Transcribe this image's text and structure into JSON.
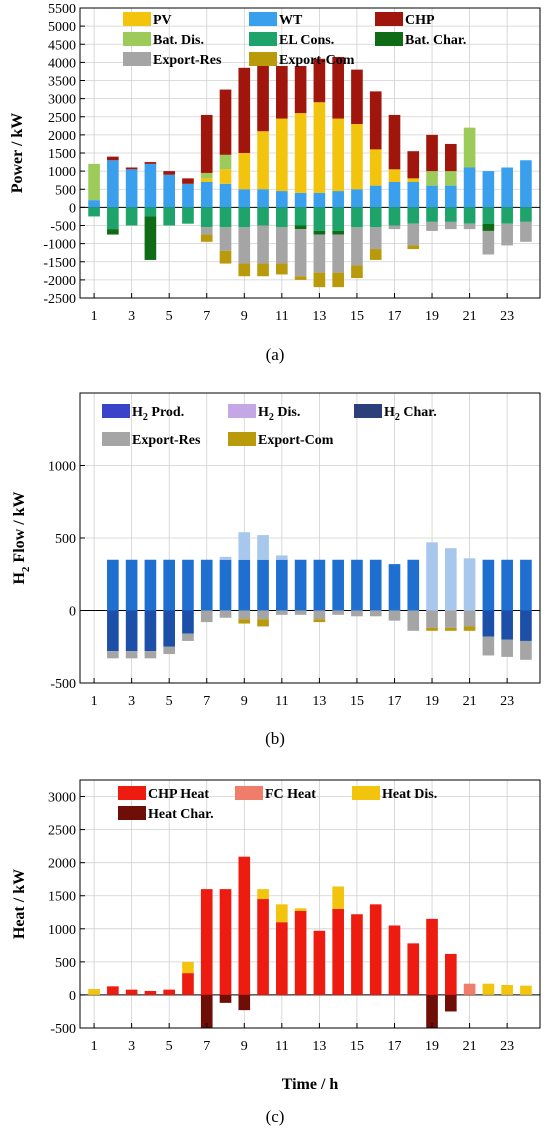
{
  "chart_data": [
    {
      "type": "bar",
      "stacked": true,
      "caption": "(a)",
      "ylabel": "Power / kW",
      "xlabel": "",
      "x": [
        1,
        2,
        3,
        4,
        5,
        6,
        7,
        8,
        9,
        10,
        11,
        12,
        13,
        14,
        15,
        16,
        17,
        18,
        19,
        20,
        21,
        22,
        23,
        24
      ],
      "xticks": [
        1,
        3,
        5,
        7,
        9,
        11,
        13,
        15,
        17,
        19,
        21,
        23
      ],
      "ylim": [
        -2500,
        5500
      ],
      "yticks": [
        -2500,
        -2000,
        -1500,
        -1000,
        -500,
        0,
        500,
        1000,
        1500,
        2000,
        2500,
        3000,
        3500,
        4000,
        4500,
        5000,
        5500
      ],
      "legend": [
        {
          "name": "PV",
          "color": "#f2c40d"
        },
        {
          "name": "WT",
          "color": "#3aa0ee"
        },
        {
          "name": "CHP",
          "color": "#a0160d"
        },
        {
          "name": "Bat. Dis.",
          "color": "#9ccb5a"
        },
        {
          "name": "EL Cons.",
          "color": "#1ea36a"
        },
        {
          "name": "Bat. Char.",
          "color": "#0f6b16"
        },
        {
          "name": "Export-Res",
          "color": "#a5a5a5"
        },
        {
          "name": "Export-Com",
          "color": "#b89a0a"
        }
      ],
      "positive_series": [
        {
          "name": "WT",
          "color": "#3aa0ee",
          "values": [
            200,
            1300,
            1050,
            1200,
            900,
            650,
            700,
            650,
            500,
            500,
            450,
            400,
            400,
            450,
            500,
            600,
            700,
            700,
            600,
            600,
            1100,
            1000,
            1100,
            1300
          ]
        },
        {
          "name": "PV",
          "color": "#f2c40d",
          "values": [
            0,
            0,
            0,
            0,
            0,
            0,
            100,
            400,
            1000,
            1600,
            2000,
            2200,
            2500,
            2000,
            1800,
            1000,
            350,
            100,
            0,
            0,
            0,
            0,
            0,
            0
          ]
        },
        {
          "name": "Bat. Dis.",
          "color": "#9ccb5a",
          "values": [
            1000,
            0,
            0,
            0,
            0,
            0,
            150,
            400,
            0,
            0,
            0,
            0,
            0,
            0,
            0,
            0,
            0,
            0,
            400,
            400,
            1100,
            0,
            0,
            0
          ]
        },
        {
          "name": "CHP",
          "color": "#a0160d",
          "values": [
            0,
            100,
            50,
            50,
            100,
            150,
            1600,
            1800,
            2350,
            1800,
            1450,
            1300,
            1200,
            1700,
            1500,
            1600,
            1500,
            750,
            1000,
            750,
            0,
            0,
            0,
            0
          ]
        }
      ],
      "negative_series": [
        {
          "name": "EL Cons.",
          "color": "#1ea36a",
          "values": [
            -250,
            -600,
            -500,
            -250,
            -500,
            -450,
            -550,
            -550,
            -550,
            -500,
            -550,
            -500,
            -650,
            -650,
            -550,
            -550,
            -500,
            -450,
            -400,
            -400,
            -450,
            -450,
            -450,
            -400
          ]
        },
        {
          "name": "Bat. Char.",
          "color": "#0f6b16",
          "values": [
            0,
            -150,
            0,
            -1200,
            0,
            0,
            0,
            0,
            0,
            0,
            0,
            -100,
            -100,
            -100,
            0,
            0,
            0,
            0,
            0,
            0,
            0,
            -200,
            0,
            0
          ]
        },
        {
          "name": "Export-Res",
          "color": "#a5a5a5",
          "values": [
            0,
            0,
            0,
            0,
            0,
            0,
            -200,
            -650,
            -1000,
            -1050,
            -1000,
            -1300,
            -1050,
            -1050,
            -1050,
            -600,
            -100,
            -600,
            -250,
            -200,
            -150,
            -650,
            -600,
            -550
          ]
        },
        {
          "name": "Export-Com",
          "color": "#b89a0a",
          "values": [
            0,
            0,
            0,
            0,
            0,
            0,
            -200,
            -350,
            -350,
            -350,
            -300,
            -100,
            -400,
            -400,
            -350,
            -300,
            0,
            -100,
            0,
            0,
            0,
            0,
            0,
            0
          ]
        }
      ]
    },
    {
      "type": "bar",
      "stacked": true,
      "caption": "(b)",
      "ylabel": "H2 Flow / kW",
      "xlabel": "",
      "x": [
        1,
        2,
        3,
        4,
        5,
        6,
        7,
        8,
        9,
        10,
        11,
        12,
        13,
        14,
        15,
        16,
        17,
        18,
        19,
        20,
        21,
        22,
        23,
        24
      ],
      "xticks": [
        1,
        3,
        5,
        7,
        9,
        11,
        13,
        15,
        17,
        19,
        21,
        23
      ],
      "ylim": [
        -500,
        1500
      ],
      "yticks": [
        -500,
        0,
        500,
        1000
      ],
      "legend": [
        {
          "name": "H2 Prod.",
          "color": "#3a44c8"
        },
        {
          "name": "H2 Dis.",
          "color": "#c4a8e6"
        },
        {
          "name": "H2 Char.",
          "color": "#2b3f7a"
        },
        {
          "name": "Export-Res",
          "color": "#a5a5a5"
        },
        {
          "name": "Export-Com",
          "color": "#b89a0a"
        }
      ],
      "positive_series": [
        {
          "name": "H2 Prod.",
          "color": "#1f6fd1",
          "values": [
            0,
            350,
            350,
            350,
            350,
            350,
            350,
            350,
            350,
            350,
            350,
            350,
            350,
            350,
            350,
            350,
            320,
            350,
            0,
            0,
            0,
            350,
            350,
            350
          ]
        },
        {
          "name": "H2 Dis.",
          "color": "#a8c7ec",
          "values": [
            0,
            0,
            0,
            0,
            0,
            0,
            0,
            20,
            190,
            170,
            30,
            0,
            0,
            0,
            0,
            0,
            0,
            0,
            470,
            430,
            360,
            0,
            0,
            0
          ]
        }
      ],
      "negative_series": [
        {
          "name": "H2 Char.",
          "color": "#1c4fa8",
          "values": [
            0,
            -280,
            -280,
            -280,
            -250,
            -160,
            0,
            0,
            0,
            0,
            0,
            0,
            0,
            0,
            0,
            0,
            0,
            0,
            0,
            0,
            0,
            -180,
            -200,
            -210
          ]
        },
        {
          "name": "Export-Res",
          "color": "#a5a5a5",
          "values": [
            0,
            -50,
            -50,
            -50,
            -50,
            -50,
            -80,
            -50,
            -60,
            -60,
            -30,
            -30,
            -60,
            -30,
            -40,
            -40,
            -70,
            -140,
            -120,
            -120,
            -110,
            -130,
            -120,
            -130
          ]
        },
        {
          "name": "Export-Com",
          "color": "#b89a0a",
          "values": [
            0,
            0,
            0,
            0,
            0,
            0,
            0,
            0,
            -30,
            -50,
            0,
            0,
            -20,
            0,
            0,
            0,
            0,
            0,
            -20,
            -20,
            -30,
            0,
            0,
            0
          ]
        }
      ]
    },
    {
      "type": "bar",
      "stacked": true,
      "caption": "(c)",
      "ylabel": "Heat / kW",
      "xlabel": "Time / h",
      "x": [
        1,
        2,
        3,
        4,
        5,
        6,
        7,
        8,
        9,
        10,
        11,
        12,
        13,
        14,
        15,
        16,
        17,
        18,
        19,
        20,
        21,
        22,
        23,
        24
      ],
      "xticks": [
        1,
        3,
        5,
        7,
        9,
        11,
        13,
        15,
        17,
        19,
        21,
        23
      ],
      "ylim": [
        -500,
        3250
      ],
      "yticks": [
        -500,
        0,
        500,
        1000,
        1500,
        2000,
        2500,
        3000
      ],
      "legend": [
        {
          "name": "CHP Heat",
          "color": "#ee1c10"
        },
        {
          "name": "FC Heat",
          "color": "#f07d6a"
        },
        {
          "name": "Heat Dis.",
          "color": "#f2c40d"
        },
        {
          "name": "Heat Char.",
          "color": "#6e0e06"
        }
      ],
      "positive_series": [
        {
          "name": "CHP Heat",
          "color": "#ee1c10",
          "values": [
            0,
            130,
            80,
            60,
            80,
            330,
            1600,
            1600,
            2090,
            1450,
            1100,
            1270,
            970,
            1300,
            1220,
            1370,
            1050,
            780,
            1150,
            620,
            0,
            0,
            0,
            0
          ]
        },
        {
          "name": "FC Heat",
          "color": "#f07d6a",
          "values": [
            0,
            0,
            0,
            0,
            0,
            0,
            0,
            0,
            0,
            0,
            0,
            0,
            0,
            0,
            0,
            0,
            0,
            0,
            0,
            0,
            170,
            0,
            0,
            0
          ]
        },
        {
          "name": "Heat Dis.",
          "color": "#f2c40d",
          "values": [
            90,
            0,
            0,
            0,
            0,
            170,
            0,
            0,
            0,
            150,
            270,
            40,
            0,
            340,
            0,
            0,
            0,
            0,
            0,
            0,
            0,
            170,
            150,
            140
          ]
        }
      ],
      "negative_series": [
        {
          "name": "Heat Char.",
          "color": "#6e0e06",
          "values": [
            0,
            0,
            0,
            0,
            0,
            0,
            -500,
            -120,
            -230,
            0,
            0,
            0,
            0,
            0,
            0,
            0,
            0,
            0,
            -500,
            -250,
            0,
            0,
            0,
            0
          ]
        }
      ]
    }
  ]
}
